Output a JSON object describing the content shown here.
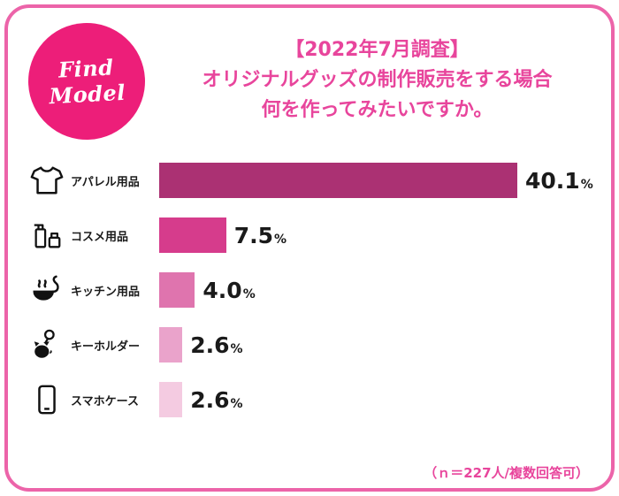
{
  "page": {
    "border_color": "#ec64a9",
    "background": "#ffffff"
  },
  "logo": {
    "text": "Find Model",
    "bg_color": "#ed1e79",
    "text_color": "#ffffff"
  },
  "header": {
    "line1": "【2022年7月調査】",
    "line2": "オリジナルグッズの制作販売をする場合",
    "line3": "何を作ってみたいですか。",
    "color": "#e8459c"
  },
  "footnote": "（ｎ＝227人/複数回答可）",
  "chart_data": {
    "type": "bar",
    "orientation": "horizontal",
    "title": "【2022年7月調査】オリジナルグッズの制作販売をする場合 何を作ってみたいですか。",
    "categories": [
      "アパレル用品",
      "コスメ用品",
      "キッチン用品",
      "キーホルダー",
      "スマホケース"
    ],
    "values": [
      40.1,
      7.5,
      4.0,
      2.6,
      2.6
    ],
    "value_labels": [
      "40.1",
      "7.5",
      "4.0",
      "2.6",
      "2.6"
    ],
    "unit": "%",
    "xlim": [
      0,
      45
    ],
    "grid": false,
    "legend": false,
    "bar_colors": [
      "#ab3173",
      "#d63c8c",
      "#df74ae",
      "#eaa3cb",
      "#f4cbe1"
    ],
    "icons": [
      "tshirt",
      "cosmetics",
      "ladle",
      "keychain",
      "smartphone"
    ],
    "sample_note": "（ｎ＝227人/複数回答可）"
  }
}
